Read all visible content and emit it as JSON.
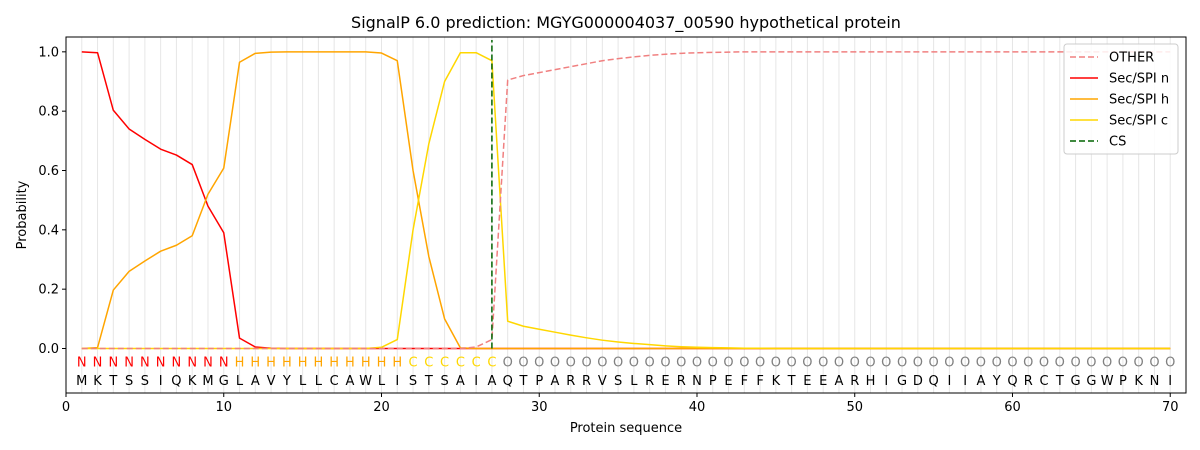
{
  "chart_data": {
    "type": "line",
    "title": "SignalP 6.0 prediction: MGYG000004037_00590 hypothetical protein",
    "xlabel": "Protein sequence",
    "ylabel": "Probability",
    "xlim": [
      0,
      71
    ],
    "ylim": [
      -0.15,
      1.05
    ],
    "xticks": [
      0,
      10,
      20,
      30,
      40,
      50,
      60,
      70
    ],
    "yticks": [
      0.0,
      0.2,
      0.4,
      0.6,
      0.8,
      1.0
    ],
    "xtick_labels": [
      "0",
      "10",
      "20",
      "30",
      "40",
      "50",
      "60",
      "70"
    ],
    "ytick_labels": [
      "0.0",
      "0.2",
      "0.4",
      "0.6",
      "0.8",
      "1.0"
    ],
    "legend_position": "top-right",
    "sequence": [
      "M",
      "K",
      "T",
      "S",
      "S",
      "I",
      "Q",
      "K",
      "M",
      "G",
      "L",
      "A",
      "V",
      "Y",
      "L",
      "L",
      "C",
      "A",
      "W",
      "L",
      "I",
      "S",
      "T",
      "S",
      "A",
      "I",
      "A",
      "Q",
      "T",
      "P",
      "A",
      "R",
      "R",
      "V",
      "S",
      "L",
      "R",
      "E",
      "R",
      "N",
      "P",
      "E",
      "F",
      "F",
      "K",
      "T",
      "E",
      "E",
      "A",
      "R",
      "H",
      "I",
      "G",
      "D",
      "Q",
      "I",
      "I",
      "A",
      "Y",
      "Q",
      "R",
      "C",
      "T",
      "G",
      "G",
      "W",
      "P",
      "K",
      "N",
      "I"
    ],
    "region_labels": [
      "N",
      "N",
      "N",
      "N",
      "N",
      "N",
      "N",
      "N",
      "N",
      "N",
      "H",
      "H",
      "H",
      "H",
      "H",
      "H",
      "H",
      "H",
      "H",
      "H",
      "H",
      "C",
      "C",
      "C",
      "C",
      "C",
      "C",
      "O",
      "O",
      "O",
      "O",
      "O",
      "O",
      "O",
      "O",
      "O",
      "O",
      "O",
      "O",
      "O",
      "O",
      "O",
      "O",
      "O",
      "O",
      "O",
      "O",
      "O",
      "O",
      "O",
      "O",
      "O",
      "O",
      "O",
      "O",
      "O",
      "O",
      "O",
      "O",
      "O",
      "O",
      "O",
      "O",
      "O",
      "O",
      "O",
      "O",
      "O",
      "O",
      "O"
    ],
    "region_colors": {
      "N": "#ff0000",
      "H": "#ffa500",
      "C": "#ffd700",
      "O": "#808080"
    },
    "cleavage_site": 27,
    "series": [
      {
        "name": "OTHER",
        "color": "#f08080",
        "dash": "dashed",
        "values": [
          0,
          0,
          0,
          0,
          0,
          0,
          0,
          0,
          0,
          0,
          0,
          0,
          0,
          0,
          0,
          0,
          0,
          0,
          0,
          0,
          0,
          0,
          0,
          0,
          0,
          0.005,
          0.03,
          0.905,
          0.92,
          0.93,
          0.94,
          0.95,
          0.96,
          0.97,
          0.977,
          0.983,
          0.988,
          0.992,
          0.995,
          0.997,
          0.998,
          0.999,
          1.0,
          1.0,
          1.0,
          1.0,
          1.0,
          1.0,
          1.0,
          1.0,
          1.0,
          1.0,
          1.0,
          1.0,
          1.0,
          1.0,
          1.0,
          1.0,
          1.0,
          1.0,
          1.0,
          1.0,
          1.0,
          1.0,
          1.0,
          1.0,
          1.0,
          1.0,
          1.0,
          1.0
        ]
      },
      {
        "name": "Sec/SPI n",
        "color": "#ff0000",
        "dash": "solid",
        "values": [
          1.0,
          0.997,
          0.803,
          0.74,
          0.705,
          0.672,
          0.652,
          0.62,
          0.48,
          0.39,
          0.035,
          0.005,
          0.001,
          0,
          0,
          0,
          0,
          0,
          0,
          0,
          0,
          0,
          0,
          0,
          0,
          0,
          0,
          0,
          0,
          0,
          0,
          0,
          0,
          0,
          0,
          0,
          0,
          0,
          0,
          0,
          0,
          0,
          0,
          0,
          0,
          0,
          0,
          0,
          0,
          0,
          0,
          0,
          0,
          0,
          0,
          0,
          0,
          0,
          0,
          0,
          0,
          0,
          0,
          0,
          0,
          0,
          0,
          0,
          0,
          0
        ]
      },
      {
        "name": "Sec/SPI h",
        "color": "#ffa500",
        "dash": "solid",
        "values": [
          0,
          0.003,
          0.197,
          0.26,
          0.295,
          0.328,
          0.348,
          0.38,
          0.52,
          0.608,
          0.965,
          0.995,
          0.999,
          1.0,
          1.0,
          1.0,
          1.0,
          1.0,
          1.0,
          0.996,
          0.97,
          0.6,
          0.31,
          0.1,
          0.002,
          0,
          0,
          0,
          0,
          0,
          0,
          0,
          0,
          0,
          0,
          0,
          0,
          0,
          0,
          0,
          0,
          0,
          0,
          0,
          0,
          0,
          0,
          0,
          0,
          0,
          0,
          0,
          0,
          0,
          0,
          0,
          0,
          0,
          0,
          0,
          0,
          0,
          0,
          0,
          0,
          0,
          0,
          0,
          0,
          0
        ]
      },
      {
        "name": "Sec/SPI c",
        "color": "#ffd700",
        "dash": "solid",
        "values": [
          0,
          0,
          0,
          0,
          0,
          0,
          0,
          0,
          0,
          0,
          0,
          0,
          0,
          0,
          0,
          0,
          0,
          0,
          0,
          0.004,
          0.03,
          0.4,
          0.69,
          0.9,
          0.997,
          0.997,
          0.97,
          0.092,
          0.075,
          0.065,
          0.055,
          0.045,
          0.036,
          0.028,
          0.022,
          0.017,
          0.013,
          0.009,
          0.006,
          0.004,
          0.003,
          0.002,
          0.001,
          0.001,
          0,
          0,
          0,
          0,
          0,
          0,
          0,
          0,
          0,
          0,
          0,
          0,
          0,
          0,
          0,
          0,
          0,
          0,
          0,
          0,
          0,
          0,
          0,
          0,
          0,
          0
        ]
      },
      {
        "name": "CS",
        "color": "#006400",
        "dash": "dashed",
        "values": []
      }
    ]
  }
}
